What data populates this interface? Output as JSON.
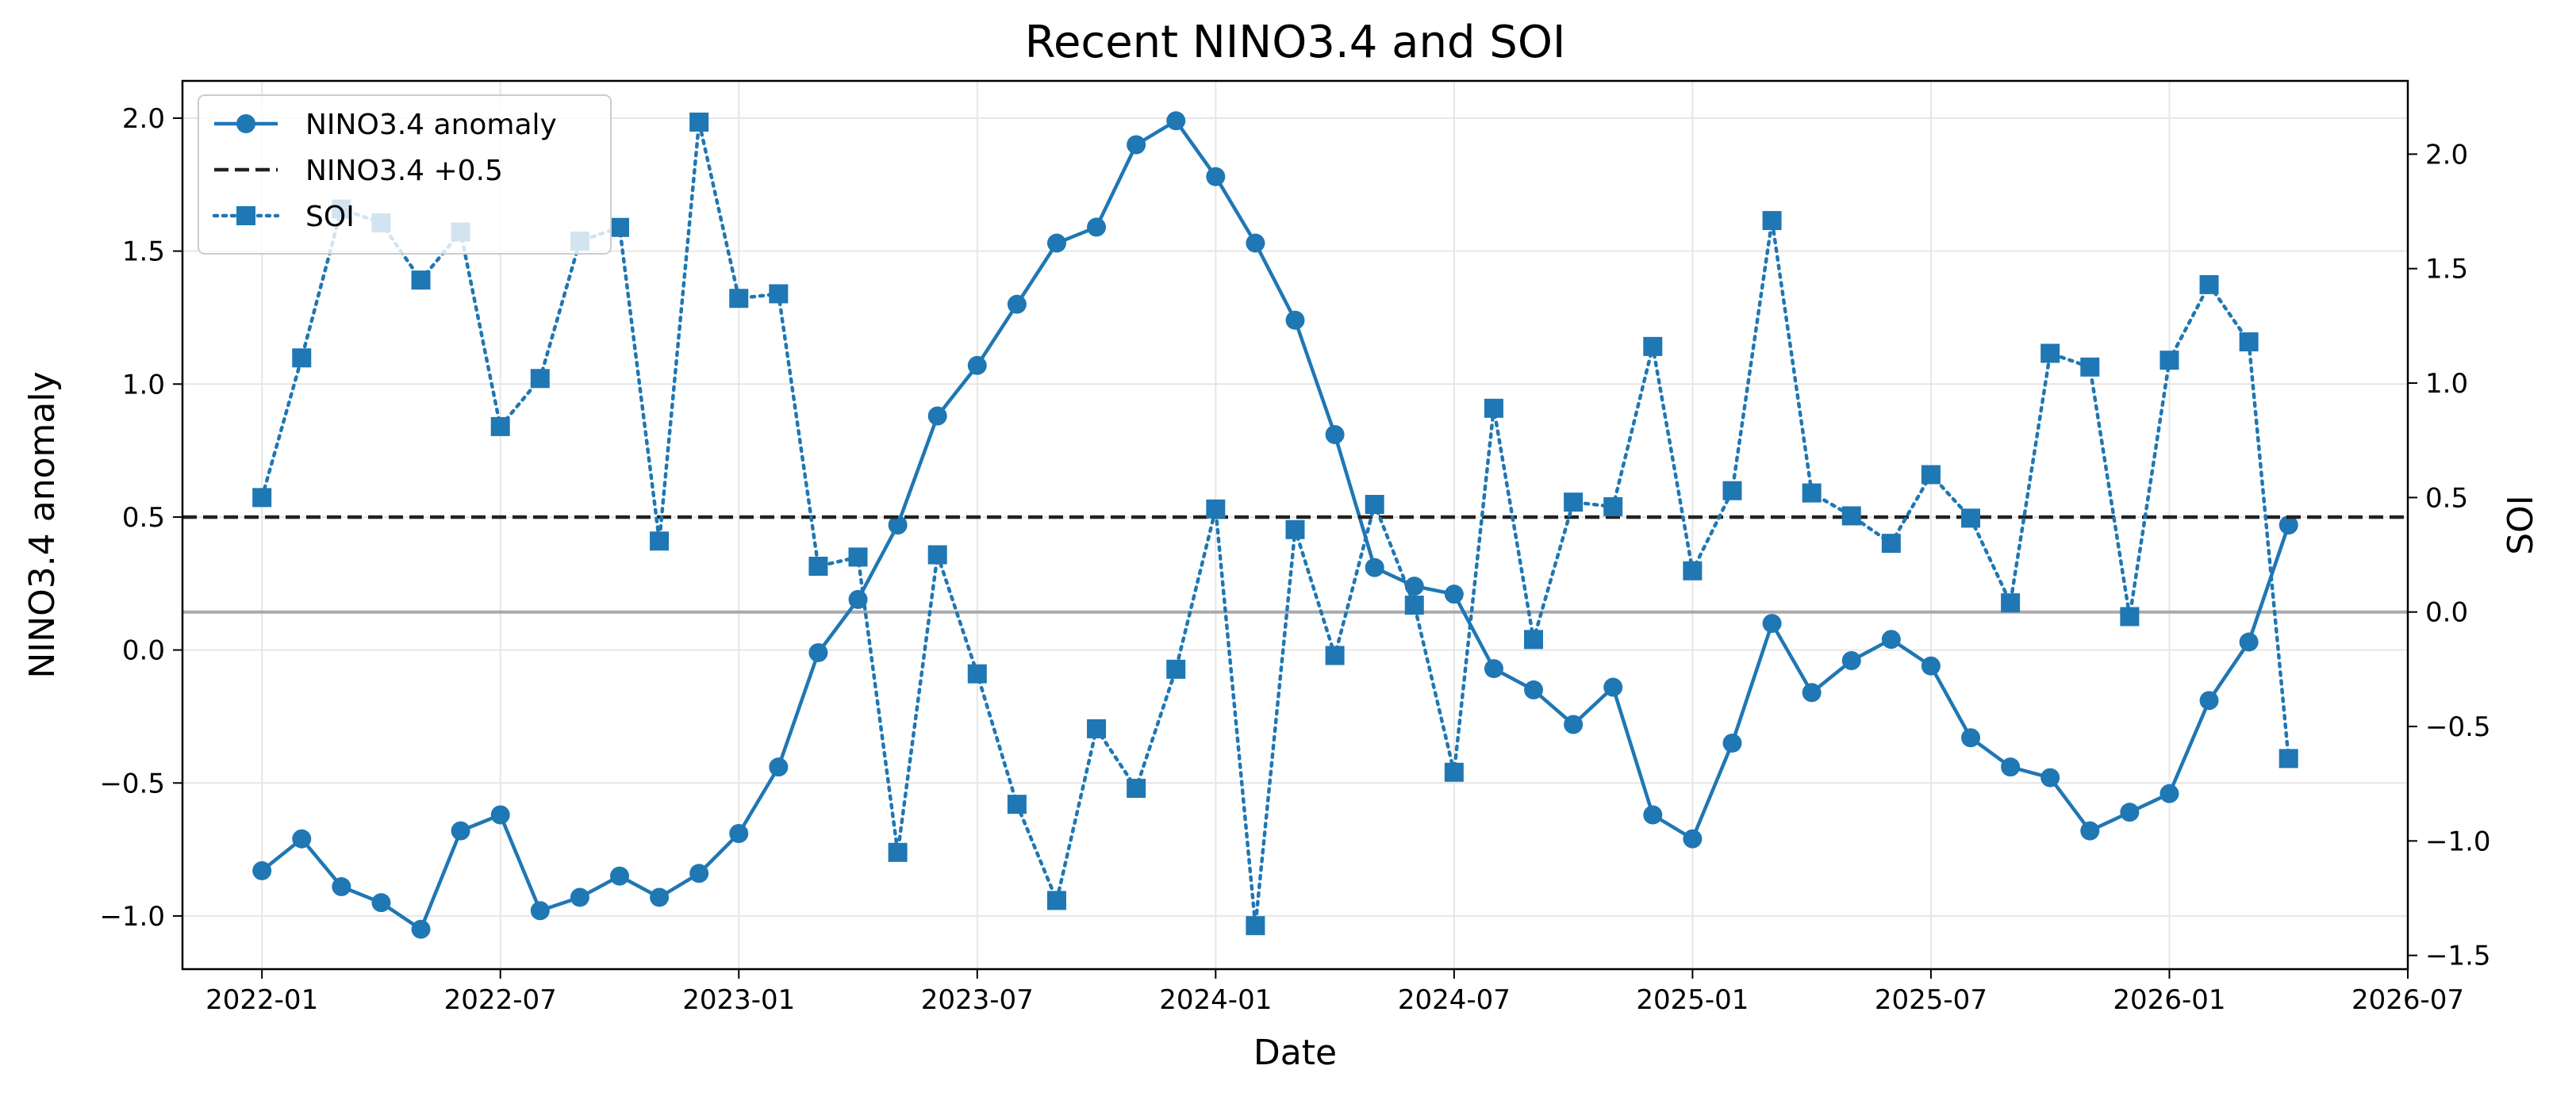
{
  "chart_data": {
    "type": "line",
    "title": "Recent NINO3.4 and SOI",
    "xlabel": "Date",
    "ylabel": "NINO3.4 anomaly",
    "ylabel_right": "SOI",
    "xlim": [
      "2021-11",
      "2026-07"
    ],
    "ylim": [
      -1.2,
      2.14
    ],
    "ylim_right": [
      -1.56,
      2.32
    ],
    "x_ticks": [
      "2022-01",
      "2022-07",
      "2023-01",
      "2023-07",
      "2024-01",
      "2024-07",
      "2025-01",
      "2025-07",
      "2026-01",
      "2026-07"
    ],
    "y_ticks": [
      -1.0,
      -0.5,
      0.0,
      0.5,
      1.0,
      1.5,
      2.0
    ],
    "y_ticks_right": [
      -1.5,
      -1.0,
      -0.5,
      0.0,
      0.5,
      1.0,
      1.5,
      2.0
    ],
    "grid": true,
    "legend_position": "top-left",
    "x": [
      "2022-01",
      "2022-02",
      "2022-03",
      "2022-04",
      "2022-05",
      "2022-06",
      "2022-07",
      "2022-08",
      "2022-09",
      "2022-10",
      "2022-11",
      "2022-12",
      "2023-01",
      "2023-02",
      "2023-03",
      "2023-04",
      "2023-05",
      "2023-06",
      "2023-07",
      "2023-08",
      "2023-09",
      "2023-10",
      "2023-11",
      "2023-12",
      "2024-01",
      "2024-02",
      "2024-03",
      "2024-04",
      "2024-05",
      "2024-06",
      "2024-07",
      "2024-08",
      "2024-09",
      "2024-10",
      "2024-11",
      "2024-12",
      "2025-01",
      "2025-02",
      "2025-03",
      "2025-04",
      "2025-05",
      "2025-06",
      "2025-07",
      "2025-08",
      "2025-09",
      "2025-10",
      "2025-11",
      "2025-12",
      "2026-01",
      "2026-02",
      "2026-03",
      "2026-04"
    ],
    "series": [
      {
        "name": "NINO3.4 anomaly",
        "axis": "left",
        "color": "#1f77b4",
        "style": "solid",
        "marker": "circle",
        "values": [
          -0.83,
          -0.71,
          -0.89,
          -0.95,
          -1.05,
          -0.68,
          -0.62,
          -0.98,
          -0.93,
          -0.85,
          -0.93,
          -0.84,
          -0.69,
          -0.44,
          -0.01,
          0.19,
          0.47,
          0.88,
          1.07,
          1.3,
          1.53,
          1.59,
          1.9,
          1.99,
          1.78,
          1.53,
          1.24,
          0.81,
          0.31,
          0.24,
          0.21,
          -0.07,
          -0.15,
          -0.28,
          -0.14,
          -0.62,
          -0.71,
          -0.35,
          0.1,
          -0.16,
          -0.04,
          0.04,
          -0.06,
          -0.33,
          -0.44,
          -0.48,
          -0.68,
          -0.61,
          -0.54,
          -0.19,
          0.03,
          0.47
        ]
      },
      {
        "name": "NINO3.4 +0.5",
        "axis": "left",
        "color": "#222222",
        "style": "dashed",
        "constant": 0.5
      },
      {
        "name": "SOI",
        "axis": "right",
        "color": "#1f77b4",
        "style": "dotted",
        "marker": "square",
        "values": [
          0.5,
          1.11,
          1.76,
          1.7,
          1.45,
          1.66,
          0.81,
          1.02,
          1.62,
          1.68,
          0.31,
          2.14,
          1.37,
          1.39,
          0.2,
          0.24,
          -1.05,
          0.25,
          -0.27,
          -0.84,
          -1.26,
          -0.51,
          -0.77,
          -0.25,
          0.45,
          -1.37,
          0.36,
          -0.19,
          0.47,
          0.03,
          -0.7,
          0.89,
          -0.12,
          0.48,
          0.46,
          1.16,
          0.18,
          0.53,
          1.71,
          0.52,
          0.42,
          0.3,
          0.6,
          0.41,
          0.04,
          1.13,
          1.07,
          -0.02,
          1.1,
          1.43,
          1.18,
          -0.64
        ]
      }
    ]
  }
}
